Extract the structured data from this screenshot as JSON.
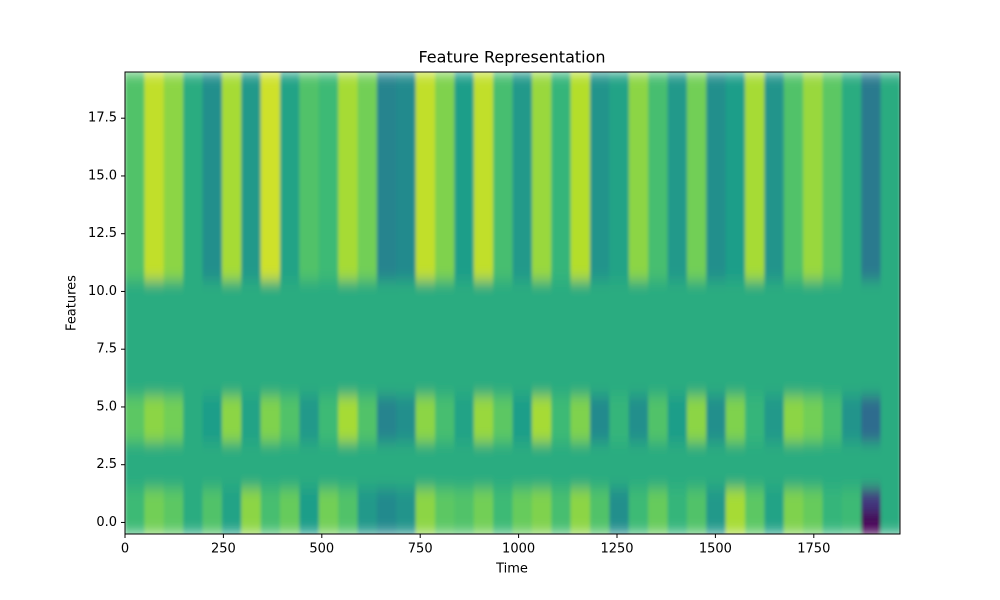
{
  "chart_data": {
    "type": "heatmap",
    "title": "Feature Representation",
    "x_label": "Time",
    "y_label": "Features",
    "cmap": "viridis",
    "zlim": [
      -3,
      1.85
    ],
    "xlim": [
      0,
      1969
    ],
    "ylim": [
      -0.5,
      19.5
    ],
    "xticks": [
      0,
      250,
      500,
      750,
      1000,
      1250,
      1500,
      1750
    ],
    "yticks": [
      {
        "value": 0,
        "label": "0.0"
      },
      {
        "value": 2.5,
        "label": "2.5"
      },
      {
        "value": 5,
        "label": "5.0"
      },
      {
        "value": 7.5,
        "label": "7.5"
      },
      {
        "value": 10,
        "label": "10.0"
      },
      {
        "value": 12.5,
        "label": "12.5"
      },
      {
        "value": 15,
        "label": "15.0"
      },
      {
        "value": 17.5,
        "label": "17.5"
      }
    ],
    "z": [
      [
        0.3,
        0.8,
        0.6,
        0,
        0.5,
        -0.2,
        1.0,
        0.4,
        0.7,
        -0.3,
        0.8,
        0.5,
        -0.4,
        -0.7,
        -0.5,
        1.0,
        0.6,
        0.5,
        0.8,
        0.3,
        0.7,
        0.9,
        0.4,
        1.0,
        0.5,
        -0.6,
        0.3,
        0.7,
        0.2,
        0.5,
        -0.4,
        1.2,
        0.6,
        -0.2,
        0.9,
        0.7,
        0.2,
        0.3,
        -3.0,
        0
      ],
      [
        0.3,
        0.8,
        0.6,
        0,
        0.5,
        -0.2,
        1.0,
        0.4,
        0.7,
        -0.3,
        0.8,
        0.5,
        -0.4,
        -0.7,
        -0.5,
        1.0,
        0.6,
        0.5,
        0.8,
        0.3,
        0.7,
        0.9,
        0.4,
        1.0,
        0.5,
        -0.6,
        0.3,
        0.7,
        0.2,
        0.5,
        -0.4,
        1.2,
        0.6,
        -0.2,
        0.9,
        0.7,
        0.2,
        0.3,
        -2.2,
        0
      ],
      [
        0,
        0,
        0,
        0,
        0,
        0,
        0,
        0,
        0,
        0,
        0,
        0,
        0,
        0,
        0,
        0,
        0,
        0,
        0,
        0,
        0,
        0,
        0,
        0,
        0,
        0,
        0,
        0,
        0,
        0,
        0,
        0,
        0,
        0,
        0,
        0,
        0,
        0,
        0,
        0
      ],
      [
        0,
        0,
        0,
        0,
        0,
        0,
        0,
        0,
        0,
        0,
        0,
        0,
        0,
        0,
        0,
        0,
        0,
        0,
        0,
        0,
        0,
        0,
        0,
        0,
        0,
        0,
        0,
        0,
        0,
        0,
        0,
        0,
        0,
        0,
        0,
        0,
        0,
        0,
        0,
        0
      ],
      [
        0.6,
        1.0,
        0.8,
        0,
        -0.3,
        1.0,
        -0.2,
        0.9,
        0.5,
        -0.4,
        0.3,
        1.2,
        0.5,
        -0.8,
        -0.6,
        1.0,
        0.4,
        -0.2,
        1.1,
        0.6,
        -0.3,
        1.2,
        0.3,
        0.9,
        -0.7,
        0.2,
        -0.6,
        0.5,
        -0.3,
        1.0,
        -0.6,
        0.9,
        0.2,
        -0.4,
        1.0,
        0.8,
        0.4,
        -0.5,
        -1.3,
        0
      ],
      [
        0.6,
        1.0,
        0.8,
        0,
        -0.3,
        1.0,
        -0.2,
        0.9,
        0.5,
        -0.4,
        0.3,
        1.2,
        0.5,
        -0.8,
        -0.6,
        1.0,
        0.4,
        -0.2,
        1.1,
        0.6,
        -0.3,
        1.2,
        0.3,
        0.9,
        -0.7,
        0.2,
        -0.6,
        0.5,
        -0.3,
        1.0,
        -0.6,
        0.9,
        0.2,
        -0.4,
        1.0,
        0.8,
        0.4,
        -0.5,
        -1.3,
        0
      ],
      [
        0,
        0,
        0,
        0,
        0,
        0,
        0,
        0,
        0,
        0,
        0,
        0,
        0,
        0,
        0,
        0,
        0,
        0,
        0,
        0,
        0,
        0,
        0,
        0,
        0,
        0,
        0,
        0,
        0,
        0,
        0,
        0,
        0,
        0,
        0,
        0,
        0,
        0,
        0,
        0
      ],
      [
        0,
        0,
        0,
        0,
        0,
        0,
        0,
        0,
        0,
        0,
        0,
        0,
        0,
        0,
        0,
        0,
        0,
        0,
        0,
        0,
        0,
        0,
        0,
        0,
        0,
        0,
        0,
        0,
        0,
        0,
        0,
        0,
        0,
        0,
        0,
        0,
        0,
        0,
        0,
        0
      ],
      [
        0,
        0,
        0,
        0,
        0,
        0,
        0,
        0,
        0,
        0,
        0,
        0,
        0,
        0,
        0,
        0,
        0,
        0,
        0,
        0,
        0,
        0,
        0,
        0,
        0,
        0,
        0,
        0,
        0,
        0,
        0,
        0,
        0,
        0,
        0,
        0,
        0,
        0,
        0,
        0
      ],
      [
        0,
        0,
        0,
        0,
        0,
        0,
        0,
        0,
        0,
        0,
        0,
        0,
        0,
        0,
        0,
        0,
        0,
        0,
        0,
        0,
        0,
        0,
        0,
        0,
        0,
        0,
        0,
        0,
        0,
        0,
        0,
        0,
        0,
        0,
        0,
        0,
        0,
        0,
        0,
        0
      ],
      [
        0,
        0,
        0,
        0,
        0,
        0,
        0,
        0,
        0,
        0,
        0,
        0,
        0,
        0,
        0,
        0,
        0,
        0,
        0,
        0,
        0,
        0,
        0,
        0,
        0,
        0,
        0,
        0,
        0,
        0,
        0,
        0,
        0,
        0,
        0,
        0,
        0,
        0,
        0,
        0
      ],
      [
        0.5,
        1.4,
        1.0,
        0,
        -0.6,
        1.2,
        -0.4,
        1.5,
        -0.2,
        0.5,
        0.3,
        1.2,
        0.8,
        -0.8,
        -0.7,
        1.4,
        0.9,
        -0.3,
        1.4,
        0.4,
        -0.4,
        1.1,
        0.2,
        1.3,
        -0.5,
        -0.2,
        1.0,
        0.4,
        -0.4,
        0.8,
        -0.6,
        -0.3,
        1.2,
        -0.5,
        0.5,
        1.1,
        0.6,
        0.0,
        -1.0,
        0
      ],
      [
        0.5,
        1.4,
        1.0,
        0,
        -0.6,
        1.2,
        -0.4,
        1.5,
        -0.2,
        0.5,
        0.3,
        1.2,
        0.8,
        -0.8,
        -0.7,
        1.4,
        0.9,
        -0.3,
        1.4,
        0.4,
        -0.4,
        1.1,
        0.2,
        1.3,
        -0.5,
        -0.2,
        1.0,
        0.4,
        -0.4,
        0.8,
        -0.6,
        -0.3,
        1.2,
        -0.5,
        0.5,
        1.1,
        0.6,
        0.0,
        -1.0,
        0
      ],
      [
        0.5,
        1.4,
        1.0,
        0,
        -0.6,
        1.2,
        -0.4,
        1.5,
        -0.2,
        0.5,
        0.3,
        1.2,
        0.8,
        -0.8,
        -0.7,
        1.4,
        0.9,
        -0.3,
        1.4,
        0.4,
        -0.4,
        1.1,
        0.2,
        1.3,
        -0.5,
        -0.2,
        1.0,
        0.4,
        -0.4,
        0.8,
        -0.6,
        -0.3,
        1.2,
        -0.5,
        0.5,
        1.1,
        0.6,
        0.0,
        -1.0,
        0
      ],
      [
        0.5,
        1.4,
        1.0,
        0,
        -0.6,
        1.2,
        -0.4,
        1.5,
        -0.2,
        0.5,
        0.3,
        1.2,
        0.8,
        -0.8,
        -0.7,
        1.4,
        0.9,
        -0.3,
        1.4,
        0.4,
        -0.4,
        1.1,
        0.2,
        1.3,
        -0.5,
        -0.2,
        1.0,
        0.4,
        -0.4,
        0.8,
        -0.6,
        -0.3,
        1.2,
        -0.5,
        0.5,
        1.1,
        0.6,
        0.0,
        -1.0,
        0
      ],
      [
        0.5,
        1.4,
        1.0,
        0,
        -0.6,
        1.2,
        -0.4,
        1.5,
        -0.2,
        0.5,
        0.3,
        1.2,
        0.8,
        -0.8,
        -0.7,
        1.4,
        0.9,
        -0.3,
        1.4,
        0.4,
        -0.4,
        1.1,
        0.2,
        1.3,
        -0.5,
        -0.2,
        1.0,
        0.4,
        -0.4,
        0.8,
        -0.6,
        -0.3,
        1.2,
        -0.5,
        0.5,
        1.1,
        0.6,
        0.0,
        -1.0,
        0
      ],
      [
        0.5,
        1.4,
        1.0,
        0,
        -0.6,
        1.2,
        -0.4,
        1.5,
        -0.2,
        0.5,
        0.3,
        1.2,
        0.8,
        -0.8,
        -0.7,
        1.4,
        0.9,
        -0.3,
        1.4,
        0.4,
        -0.4,
        1.1,
        0.2,
        1.3,
        -0.5,
        -0.2,
        1.0,
        0.4,
        -0.4,
        0.8,
        -0.6,
        -0.3,
        1.2,
        -0.5,
        0.5,
        1.1,
        0.6,
        0.0,
        -1.0,
        0
      ],
      [
        0.5,
        1.4,
        1.0,
        0,
        -0.6,
        1.2,
        -0.4,
        1.5,
        -0.2,
        0.5,
        0.3,
        1.2,
        0.8,
        -0.8,
        -0.7,
        1.4,
        0.9,
        -0.3,
        1.4,
        0.4,
        -0.4,
        1.1,
        0.2,
        1.3,
        -0.5,
        -0.2,
        1.0,
        0.4,
        -0.4,
        0.8,
        -0.6,
        -0.3,
        1.2,
        -0.5,
        0.5,
        1.1,
        0.6,
        0.0,
        -1.0,
        0
      ],
      [
        0.5,
        1.4,
        1.0,
        0,
        -0.6,
        1.2,
        -0.4,
        1.5,
        -0.2,
        0.5,
        0.3,
        1.2,
        0.8,
        -0.8,
        -0.7,
        1.4,
        0.9,
        -0.3,
        1.4,
        0.4,
        -0.4,
        1.1,
        0.2,
        1.3,
        -0.5,
        -0.2,
        1.0,
        0.4,
        -0.4,
        0.8,
        -0.6,
        -0.3,
        1.2,
        -0.5,
        0.5,
        1.1,
        0.6,
        0.0,
        -1.0,
        0
      ],
      [
        0.5,
        1.4,
        1.0,
        0,
        -0.6,
        1.2,
        -0.4,
        1.5,
        -0.2,
        0.5,
        0.3,
        1.2,
        0.8,
        -0.8,
        -0.7,
        1.4,
        0.9,
        -0.3,
        1.4,
        0.4,
        -0.4,
        1.1,
        0.2,
        1.3,
        -0.5,
        -0.2,
        1.0,
        0.4,
        -0.4,
        0.8,
        -0.6,
        -0.3,
        1.2,
        -0.5,
        0.5,
        1.1,
        0.6,
        0.0,
        -1.0,
        0
      ]
    ]
  }
}
